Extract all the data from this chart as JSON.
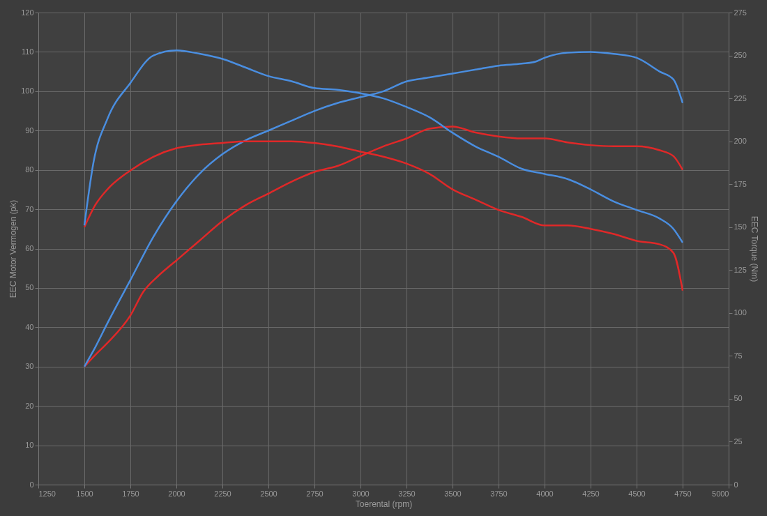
{
  "chart_data": {
    "type": "line",
    "xlabel": "Toerental (rpm)",
    "ylabel": "EEC Motor Vermogen (pk)",
    "y2label": "EEC Torque (Nm)",
    "xlim": [
      1250,
      5000
    ],
    "xticks": [
      1250,
      1500,
      1750,
      2000,
      2250,
      2500,
      2750,
      3000,
      3250,
      3500,
      3750,
      4000,
      4250,
      4500,
      4750,
      5000
    ],
    "ylim": [
      0,
      120
    ],
    "yticks": [
      0,
      10,
      20,
      30,
      40,
      50,
      60,
      70,
      80,
      90,
      100,
      110,
      120
    ],
    "y2lim": [
      0,
      275
    ],
    "y2ticks": [
      0,
      25,
      50,
      75,
      100,
      125,
      150,
      175,
      200,
      225,
      250,
      275
    ],
    "grid": true,
    "legend": false,
    "line_style": "solid",
    "series": [
      {
        "color": "#e02828",
        "axis": "y",
        "x": [
          1500,
          1560,
          1625,
          1750,
          1820,
          1900,
          2000,
          2125,
          2250,
          2375,
          2500,
          2625,
          2750,
          2875,
          3000,
          3125,
          3250,
          3375,
          3500,
          3625,
          3750,
          3875,
          4000,
          4125,
          4250,
          4375,
          4500,
          4625,
          4700,
          4750
        ],
        "values": [
          30,
          33,
          36,
          43,
          49,
          53,
          57,
          62,
          67,
          71,
          74,
          77,
          79.5,
          81,
          83.5,
          86,
          88,
          90.5,
          91,
          89.5,
          88.5,
          88,
          88,
          87,
          86.3,
          86,
          86,
          85,
          83.5,
          80
        ]
      },
      {
        "color": "#e02828",
        "axis": "y2",
        "x": [
          1500,
          1560,
          1625,
          1750,
          1875,
          2000,
          2125,
          2250,
          2375,
          2500,
          2625,
          2750,
          2875,
          3000,
          3125,
          3250,
          3375,
          3500,
          3625,
          3750,
          3875,
          4000,
          4125,
          4250,
          4375,
          4500,
          4625,
          4700,
          4750
        ],
        "values": [
          150,
          163,
          172,
          183,
          191,
          196,
          198,
          199,
          200,
          200,
          200,
          199,
          197,
          194,
          191,
          187,
          181,
          172,
          166,
          160,
          156,
          151,
          151,
          149,
          146,
          142,
          140,
          135,
          113
        ]
      },
      {
        "color": "#4a8ee0",
        "axis": "y",
        "x": [
          1500,
          1560,
          1625,
          1750,
          1875,
          2000,
          2125,
          2250,
          2375,
          2500,
          2625,
          2750,
          2875,
          3000,
          3125,
          3250,
          3375,
          3500,
          3625,
          3750,
          3875,
          3950,
          4000,
          4125,
          4250,
          4375,
          4500,
          4625,
          4700,
          4750
        ],
        "values": [
          30,
          35,
          41,
          52,
          63,
          72,
          79,
          84,
          87.5,
          90,
          92.5,
          95,
          97,
          98.5,
          100,
          102.5,
          103.5,
          104.5,
          105.5,
          106.5,
          107,
          107.5,
          108.5,
          109.8,
          110,
          109.5,
          108.5,
          105,
          103,
          97
        ]
      },
      {
        "color": "#4a8ee0",
        "axis": "y2",
        "x": [
          1500,
          1550,
          1625,
          1750,
          1875,
          2000,
          2125,
          2250,
          2375,
          2500,
          2625,
          2750,
          2875,
          3000,
          3125,
          3250,
          3375,
          3500,
          3625,
          3750,
          3875,
          4000,
          4125,
          4250,
          4375,
          4500,
          4625,
          4700,
          4750
        ],
        "values": [
          151,
          188,
          213,
          234,
          250,
          253,
          251,
          248,
          243,
          238,
          235,
          231,
          230,
          228,
          225,
          220,
          214,
          205,
          197,
          191,
          184,
          181,
          178,
          172,
          165,
          160,
          155,
          149,
          141
        ]
      }
    ]
  }
}
